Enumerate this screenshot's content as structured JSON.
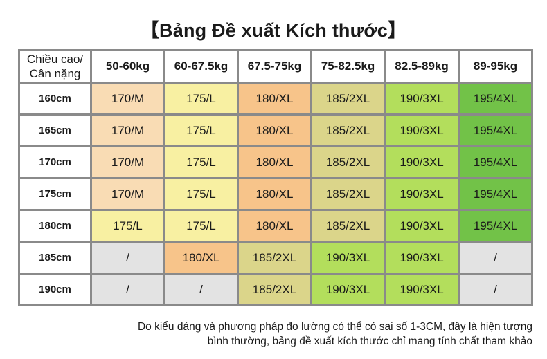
{
  "title": "【Bảng Đề xuất Kích thước】",
  "table": {
    "corner_line1": "Chiều cao/",
    "corner_line2": "Cân nặng",
    "columns": [
      "50-60kg",
      "60-67.5kg",
      "67.5-75kg",
      "75-82.5kg",
      "82.5-89kg",
      "89-95kg"
    ],
    "rows": [
      {
        "height": "160cm",
        "cells": [
          "170/M",
          "175/L",
          "180/XL",
          "185/2XL",
          "190/3XL",
          "195/4XL"
        ]
      },
      {
        "height": "165cm",
        "cells": [
          "170/M",
          "175/L",
          "180/XL",
          "185/2XL",
          "190/3XL",
          "195/4XL"
        ]
      },
      {
        "height": "170cm",
        "cells": [
          "170/M",
          "175/L",
          "180/XL",
          "185/2XL",
          "190/3XL",
          "195/4XL"
        ]
      },
      {
        "height": "175cm",
        "cells": [
          "170/M",
          "175/L",
          "180/XL",
          "185/2XL",
          "190/3XL",
          "195/4XL"
        ]
      },
      {
        "height": "180cm",
        "cells": [
          "175/L",
          "175/L",
          "180/XL",
          "185/2XL",
          "190/3XL",
          "195/4XL"
        ]
      },
      {
        "height": "185cm",
        "cells": [
          "/",
          "180/XL",
          "185/2XL",
          "190/3XL",
          "190/3XL",
          "/"
        ]
      },
      {
        "height": "190cm",
        "cells": [
          "/",
          "/",
          "185/2XL",
          "190/3XL",
          "190/3XL",
          "/"
        ]
      }
    ]
  },
  "size_colors": {
    "170/M": "#f9dcb4",
    "175/L": "#f8f0a2",
    "180/XL": "#f7c48a",
    "185/2XL": "#dbd58a",
    "190/3XL": "#b3de5c",
    "195/4XL": "#72c248",
    "/": "#e3e3e3"
  },
  "footnote": {
    "line1": "Do kiểu dáng và phương pháp đo lường có thể có sai số 1-3CM, đây là hiện tượng",
    "line2": "bình thường, bảng đề xuất kích thước chỉ mang tính chất tham khảo"
  }
}
